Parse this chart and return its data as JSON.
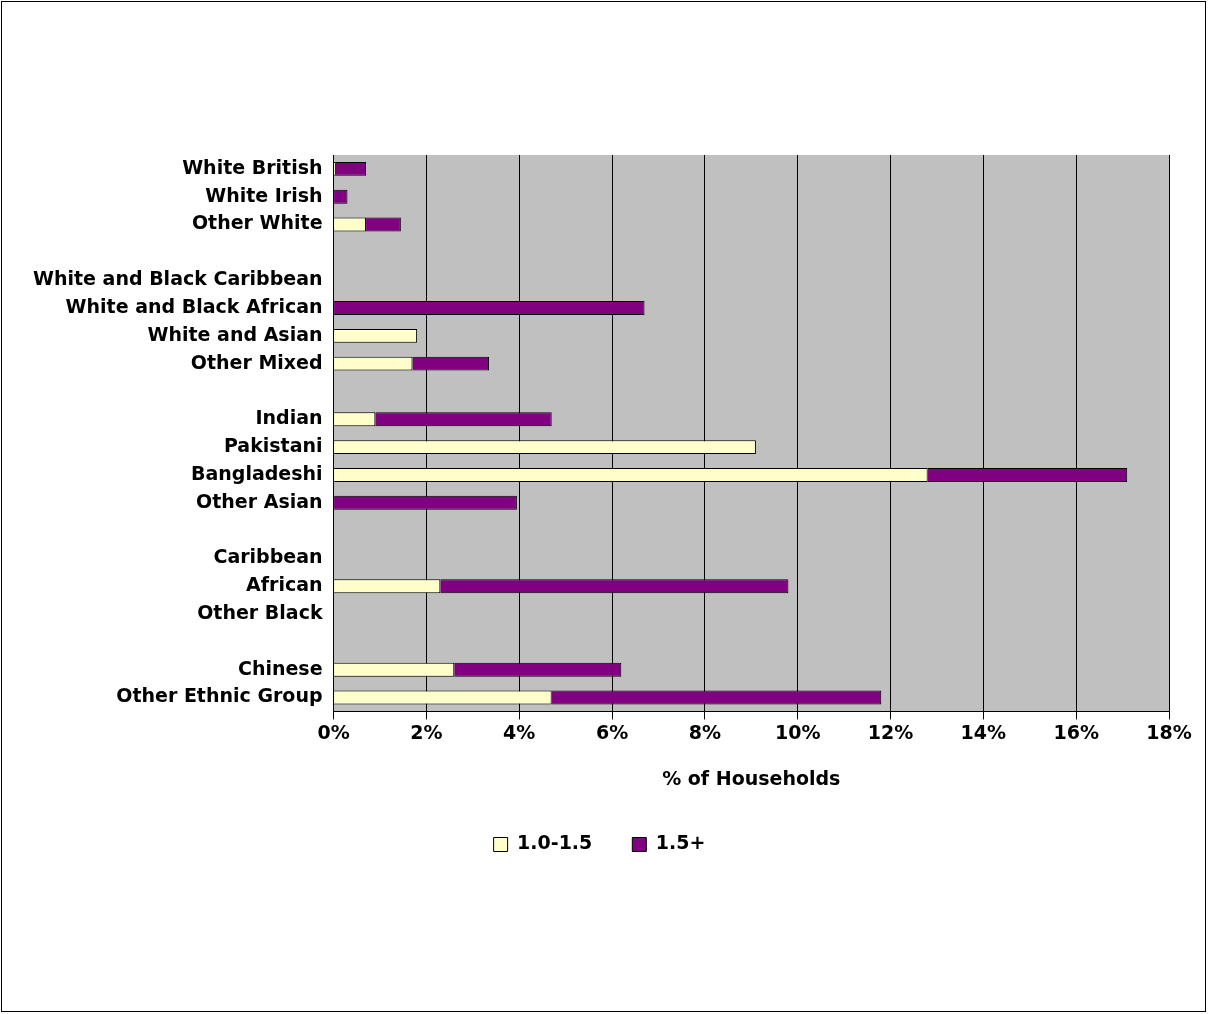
{
  "chart_data": {
    "type": "bar",
    "orientation": "horizontal",
    "stacked": true,
    "categories": [
      "White British",
      "White Irish",
      "Other White",
      null,
      "White and Black Caribbean",
      "White and Black African",
      "White and Asian",
      "Other Mixed",
      null,
      "Indian",
      "Pakistani",
      "Bangladeshi",
      "Other Asian",
      null,
      "Caribbean",
      "African",
      "Other Black",
      null,
      "Chinese",
      "Other Ethnic Group"
    ],
    "series": [
      {
        "name": "1.0-1.5",
        "color": "#ffffcc",
        "values": [
          0.05,
          null,
          0.7,
          null,
          0,
          0,
          1.8,
          1.7,
          null,
          0.9,
          9.1,
          12.8,
          0,
          null,
          0,
          2.3,
          0,
          null,
          2.6,
          4.7
        ]
      },
      {
        "name": "1.5+",
        "color": "#800080",
        "values": [
          0.65,
          0.3,
          0.75,
          null,
          0,
          6.7,
          0,
          1.65,
          null,
          3.8,
          0,
          4.3,
          3.95,
          null,
          0,
          7.5,
          0,
          null,
          3.6,
          7.1
        ]
      }
    ],
    "xlabel": "% of Households",
    "xlim": [
      0,
      18
    ],
    "xticks": [
      {
        "value": 0,
        "label": "0%"
      },
      {
        "value": 2,
        "label": "2%"
      },
      {
        "value": 4,
        "label": "4%"
      },
      {
        "value": 6,
        "label": "6%"
      },
      {
        "value": 8,
        "label": "8%"
      },
      {
        "value": 10,
        "label": "10%"
      },
      {
        "value": 12,
        "label": "12%"
      },
      {
        "value": 14,
        "label": "14%"
      },
      {
        "value": 16,
        "label": "16%"
      },
      {
        "value": 18,
        "label": "18%"
      }
    ],
    "grid": "x",
    "legend": "bottom"
  }
}
